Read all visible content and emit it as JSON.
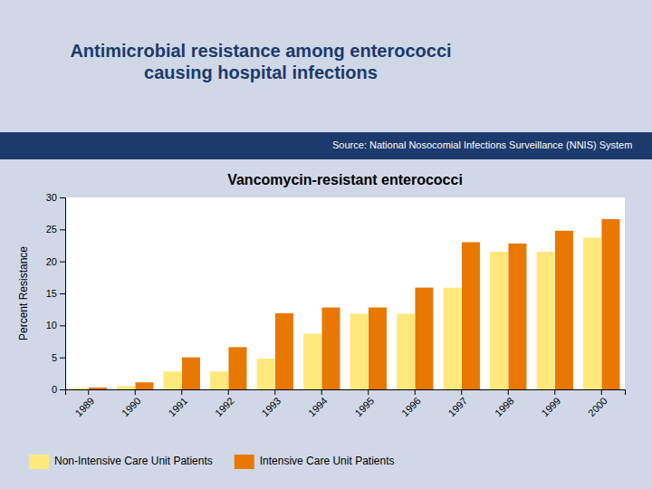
{
  "chart_data": {
    "type": "bar",
    "title": "Vancomycin-resistant enterococci",
    "subtitle": "Antimicrobial resistance among enterococci\ncausing hospital infections",
    "source": "Source: National Nosocomial Infections Surveillance (NNIS) System",
    "y_label": "Percent Resistance",
    "categories": [
      "1989",
      "1990",
      "1991",
      "1992",
      "1993",
      "1994",
      "1995",
      "1996",
      "1997",
      "1998",
      "1999",
      "2000"
    ],
    "series": [
      {
        "name": "Non-Intensive Care Unit Patients",
        "color": "#FFE87C",
        "values": [
          0.2,
          0.5,
          2.8,
          2.8,
          4.8,
          8.7,
          11.8,
          11.8,
          15.9,
          21.5,
          21.5,
          23.7
        ]
      },
      {
        "name": "Intensive Care Unit Patients",
        "color": "#E87800",
        "values": [
          0.3,
          1.1,
          5.0,
          6.6,
          11.9,
          12.8,
          12.8,
          15.9,
          23.0,
          22.8,
          24.8,
          26.6
        ]
      }
    ],
    "ylim": [
      0,
      30
    ],
    "yticks": [
      0,
      5,
      10,
      15,
      20,
      25,
      30
    ],
    "grid": false,
    "legend": "bottom"
  }
}
